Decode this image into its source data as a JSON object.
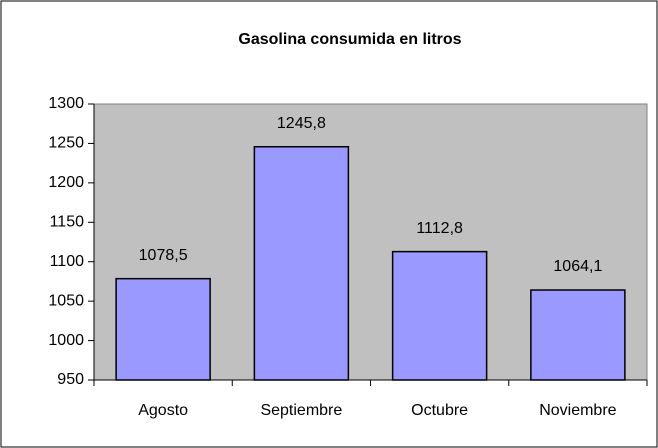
{
  "chart_data": {
    "type": "bar",
    "title": "Gasolina consumida en litros",
    "categories": [
      "Agosto",
      "Septiembre",
      "Octubre",
      "Noviembre"
    ],
    "values": [
      1078.5,
      1245.8,
      1112.8,
      1064.1
    ],
    "value_labels": [
      "1078,5",
      "1245,8",
      "1112,8",
      "1064,1"
    ],
    "color": "#9999ff",
    "plot_background": "#c0c0c0",
    "ylim": [
      950,
      1300
    ],
    "yticks": [
      950,
      1000,
      1050,
      1100,
      1150,
      1200,
      1250,
      1300
    ],
    "grid": false
  }
}
